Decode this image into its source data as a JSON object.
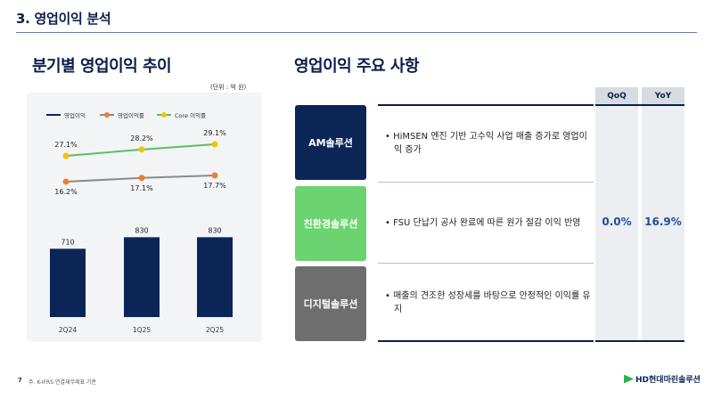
{
  "header": {
    "section_title": "3. 영업이익 분석"
  },
  "left": {
    "title": "분기별 영업이익 추이",
    "unit": "(단위 : 억 원)"
  },
  "chart_data": {
    "type": "bar",
    "categories": [
      "2Q24",
      "1Q25",
      "2Q25"
    ],
    "series": [
      {
        "name": "영업이익",
        "kind": "bar",
        "color": "#0b2557",
        "values": [
          710,
          830,
          830
        ],
        "labels": [
          "710",
          "830",
          "830"
        ]
      },
      {
        "name": "영업이익률",
        "kind": "line",
        "color": "#ef7d32",
        "values": [
          16.2,
          17.1,
          17.7
        ],
        "labels": [
          "16.2%",
          "17.1%",
          "17.7%"
        ]
      },
      {
        "name": "Core 이익률",
        "kind": "line",
        "color": "#f2c400",
        "line_color": "#5cbf63",
        "values": [
          27.1,
          28.2,
          29.1
        ],
        "labels": [
          "27.1%",
          "28.2%",
          "29.1%"
        ]
      }
    ],
    "legend": "top-left",
    "grid": false
  },
  "right": {
    "title": "영업이익 주요 사항",
    "columns": {
      "qoq": "QoQ",
      "yoy": "YoY"
    },
    "rows": [
      {
        "category": "AM솔루션",
        "detail": "• HiMSEN 엔진 기반 고수익 사업 매출 증가로 영업이익 증가"
      },
      {
        "category": "친환경솔루션",
        "detail": "• FSU 단납기 공사 완료에 따른 원가 절감 이익 반영"
      },
      {
        "category": "디지털솔루션",
        "detail": "• 매출의 견조한 성장세를 바탕으로 안정적인 이익률 유지"
      }
    ],
    "qoq_value": "0.0%",
    "yoy_value": "16.9%"
  },
  "footer": {
    "page": "7",
    "note": "주. K-IFRS 연결재무제표 기준",
    "logo": "HD현대마린솔루션"
  },
  "colors": {
    "navy": "#0b2557",
    "green": "#6bd36f",
    "gray": "#6e6e6e",
    "value_blue": "#1f4e9e"
  }
}
